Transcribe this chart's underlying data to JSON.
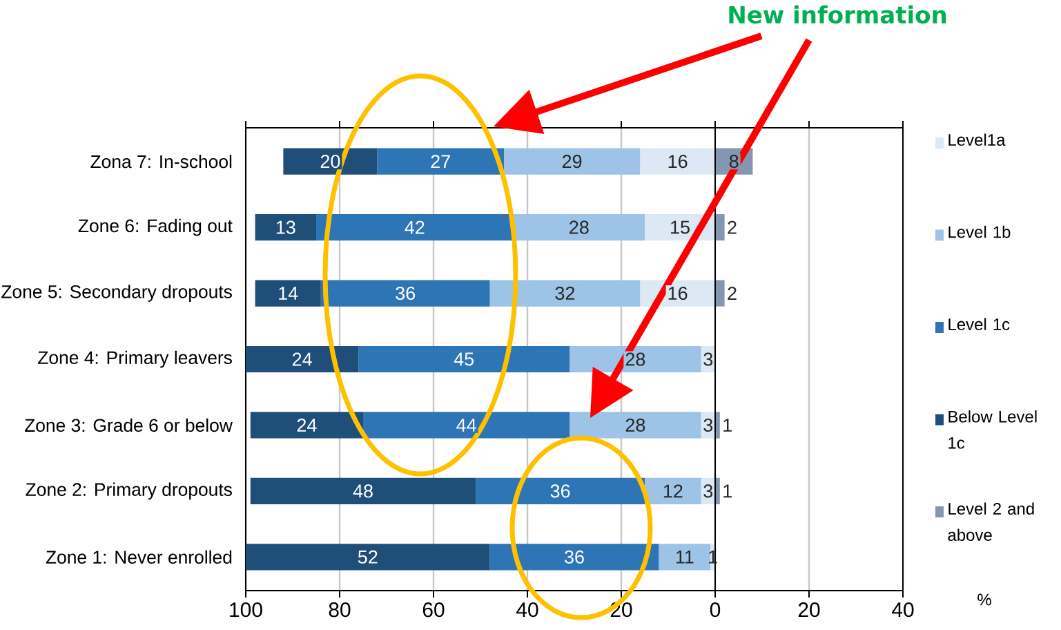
{
  "chart_data": {
    "type": "bar",
    "orientation": "horizontal",
    "data_labels": true,
    "categories": [
      "Zona 7: In-school",
      "Zone 6: Fading out",
      "Zone 5: Secondary dropouts",
      "Zone 4: Primary leavers",
      "Zone 3: Grade 6 or below",
      "Zone 2: Primary dropouts",
      "Zone 1: Never enrolled"
    ],
    "series": [
      {
        "name": "Level1a",
        "color": "#dce9f5",
        "values": [
          16,
          15,
          16,
          3,
          3,
          3,
          1
        ],
        "base": [
          -16,
          -15,
          -16,
          -3,
          -3,
          -3,
          -1
        ]
      },
      {
        "name": "Level 1b",
        "color": "#9dc3e6",
        "values": [
          29,
          28,
          32,
          28,
          28,
          12,
          11
        ],
        "base": [
          -45,
          -43,
          -48,
          -31,
          -31,
          -15,
          -12
        ]
      },
      {
        "name": "Level 1c",
        "color": "#2e75b6",
        "values": [
          27,
          42,
          36,
          45,
          44,
          36,
          36
        ],
        "base": [
          -72,
          -85,
          -84,
          -76,
          -75,
          -51,
          -48
        ]
      },
      {
        "name": "Below Level 1c",
        "color": "#1f4e79",
        "values": [
          20,
          13,
          14,
          24,
          24,
          48,
          52
        ],
        "base": [
          -92,
          -98,
          -98,
          -100,
          -99,
          -99,
          -100
        ]
      },
      {
        "name": "Level 2 and above",
        "color": "#8497b0",
        "values": [
          8,
          2,
          2,
          null,
          1,
          1,
          null
        ]
      }
    ],
    "xlim": [
      -100,
      40
    ],
    "xticks": [
      {
        "value": -100,
        "label": "100"
      },
      {
        "value": -80,
        "label": "80"
      },
      {
        "value": -60,
        "label": "60"
      },
      {
        "value": -40,
        "label": "40"
      },
      {
        "value": -20,
        "label": "20"
      },
      0,
      20,
      40
    ],
    "grid": "x",
    "legend": "right",
    "annotations": [
      "New information",
      "%"
    ]
  }
}
